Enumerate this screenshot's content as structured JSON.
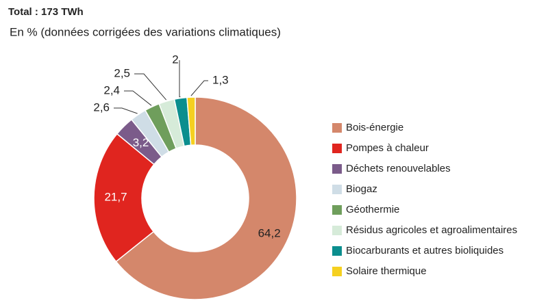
{
  "chart_data": {
    "type": "donut",
    "title": "Total : 173 TWh",
    "subtitle": "En % (données corrigées des variations climatiques)",
    "categories": [
      "Bois-énergie",
      "Pompes à chaleur",
      "Déchets renouvelables",
      "Biogaz",
      "Géothermie",
      "Résidus agricoles et agroalimentaires",
      "Biocarburants et autres bioliquides",
      "Solaire thermique"
    ],
    "values": [
      64.2,
      21.7,
      3.2,
      2.6,
      2.4,
      2.5,
      2,
      1.3
    ],
    "value_labels": [
      "64,2",
      "21,7",
      "3,2",
      "2,6",
      "2,4",
      "2,5",
      "2",
      "1,3"
    ],
    "colors": [
      "#d4876b",
      "#e0251f",
      "#7b5b8a",
      "#cfdde6",
      "#6f9e5c",
      "#d6ebd9",
      "#0b8e8e",
      "#f5d020"
    ],
    "legend": "right"
  }
}
